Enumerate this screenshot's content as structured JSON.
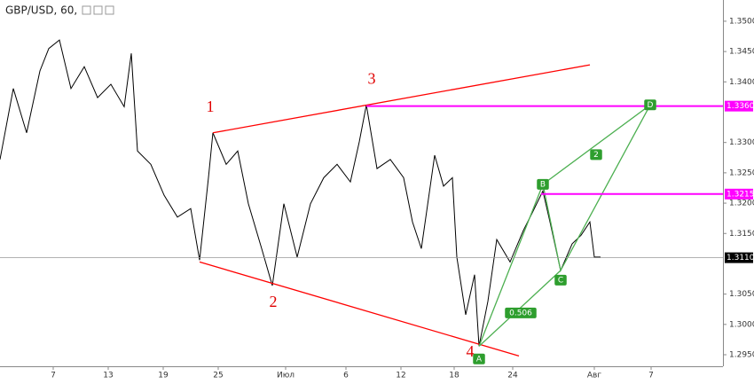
{
  "chart_data": {
    "type": "line",
    "title": "GBP/USD, 60,",
    "x": [
      0.0,
      1.5,
      3.0,
      4.5,
      5.5,
      6.7,
      8.0,
      9.5,
      11.0,
      12.5,
      14.0,
      14.8,
      15.5,
      17.0,
      18.5,
      20.0,
      21.5,
      22.5,
      23.5,
      24.0,
      25.5,
      26.8,
      28.0,
      29.5,
      30.7,
      32.0,
      33.5,
      35.0,
      36.5,
      38.0,
      39.5,
      40.5,
      41.3,
      42.5,
      44.0,
      45.5,
      46.5,
      47.5,
      49.0,
      50.0,
      51.0,
      51.5,
      52.5,
      53.5,
      54.0,
      55.0,
      56.0,
      57.5,
      59.0,
      60.0,
      61.2,
      62.0,
      63.2,
      64.5,
      65.5,
      66.5,
      67.0,
      67.7
    ],
    "series": [
      {
        "name": "GBP/USD",
        "color": "#000000",
        "values": [
          1.3272,
          1.3389,
          1.3316,
          1.3418,
          1.3455,
          1.3469,
          1.3389,
          1.3425,
          1.3374,
          1.3396,
          1.3359,
          1.3447,
          1.3286,
          1.3264,
          1.3213,
          1.3177,
          1.3191,
          1.3106,
          1.3242,
          1.3316,
          1.3264,
          1.3286,
          1.3199,
          1.3125,
          1.3064,
          1.3199,
          1.3111,
          1.3199,
          1.3242,
          1.3264,
          1.3235,
          1.3301,
          1.3362,
          1.3257,
          1.3272,
          1.3242,
          1.3169,
          1.3125,
          1.3279,
          1.3228,
          1.3242,
          1.3111,
          1.3016,
          1.3082,
          1.2964,
          1.3038,
          1.314,
          1.3103,
          1.3155,
          1.3184,
          1.322,
          1.3169,
          1.3089,
          1.3133,
          1.3147,
          1.3169,
          1.3111,
          1.3111
        ]
      }
    ],
    "xlim": [
      0,
      81.5
    ],
    "xticks": [
      {
        "value": 6.0,
        "label": "7"
      },
      {
        "value": 12.2,
        "label": "13"
      },
      {
        "value": 18.4,
        "label": "19"
      },
      {
        "value": 24.6,
        "label": "25"
      },
      {
        "value": 32.2,
        "label": "Июл"
      },
      {
        "value": 39.0,
        "label": "6"
      },
      {
        "value": 45.2,
        "label": "12"
      },
      {
        "value": 51.2,
        "label": "18"
      },
      {
        "value": 57.8,
        "label": "24"
      },
      {
        "value": 67.0,
        "label": "Авг"
      },
      {
        "value": 73.4,
        "label": "7"
      }
    ],
    "ylim": [
      1.2931,
      1.3535
    ],
    "yticks": [
      {
        "value": 1.295,
        "label": "1.2950"
      },
      {
        "value": 1.3,
        "label": "1.3000"
      },
      {
        "value": 1.305,
        "label": "1.3050"
      },
      {
        "value": 1.315,
        "label": "1.3150"
      },
      {
        "value": 1.32,
        "label": "1.3200"
      },
      {
        "value": 1.325,
        "label": "1.3250"
      },
      {
        "value": 1.33,
        "label": "1.3300"
      },
      {
        "value": 1.34,
        "label": "1.3400"
      },
      {
        "value": 1.345,
        "label": "1.3450"
      },
      {
        "value": 1.35,
        "label": "1.3500"
      }
    ],
    "grid": false,
    "current_price": {
      "value": 1.311,
      "label": "1.3110"
    },
    "levels": [
      {
        "value": 1.336,
        "label": "1.3360",
        "x": 41.3,
        "color": "#ff00ff"
      },
      {
        "value": 1.3215,
        "label": "1.3215",
        "x": 61.0,
        "color": "#ff00ff"
      }
    ],
    "trendlines": [
      {
        "color": "#ff0000",
        "x": [
          24.0,
          66.5
        ],
        "y": [
          1.3316,
          1.3428
        ]
      },
      {
        "color": "#ff0000",
        "x": [
          22.5,
          58.5
        ],
        "y": [
          1.3103,
          1.2948
        ]
      },
      {
        "color": "#4caf50",
        "x": [
          54.0,
          61.2,
          63.2,
          73.3
        ],
        "y": [
          1.2964,
          1.3231,
          1.3089,
          1.3362
        ]
      },
      {
        "color": "#4caf50",
        "x": [
          54.0,
          63.2
        ],
        "y": [
          1.2964,
          1.3089
        ]
      },
      {
        "color": "#4caf50",
        "x": [
          61.2,
          73.3
        ],
        "y": [
          1.3231,
          1.3362
        ]
      }
    ],
    "wave_labels": [
      {
        "label": "1",
        "x": 23.7,
        "y": 1.3357
      },
      {
        "label": "2",
        "x": 30.8,
        "y": 1.3035
      },
      {
        "label": "3",
        "x": 41.9,
        "y": 1.3403
      },
      {
        "label": "4",
        "x": 53.0,
        "y": 1.2953
      }
    ],
    "pattern_labels": [
      {
        "label": "A",
        "x": 54.0,
        "y": 1.2943
      },
      {
        "label": "B",
        "x": 61.2,
        "y": 1.3231
      },
      {
        "label": "C",
        "x": 63.2,
        "y": 1.3073
      },
      {
        "label": "D",
        "x": 73.3,
        "y": 1.3362
      },
      {
        "label": "2",
        "x": 67.2,
        "y": 1.328
      },
      {
        "label": "0.506",
        "x": 58.7,
        "y": 1.3019
      }
    ]
  }
}
